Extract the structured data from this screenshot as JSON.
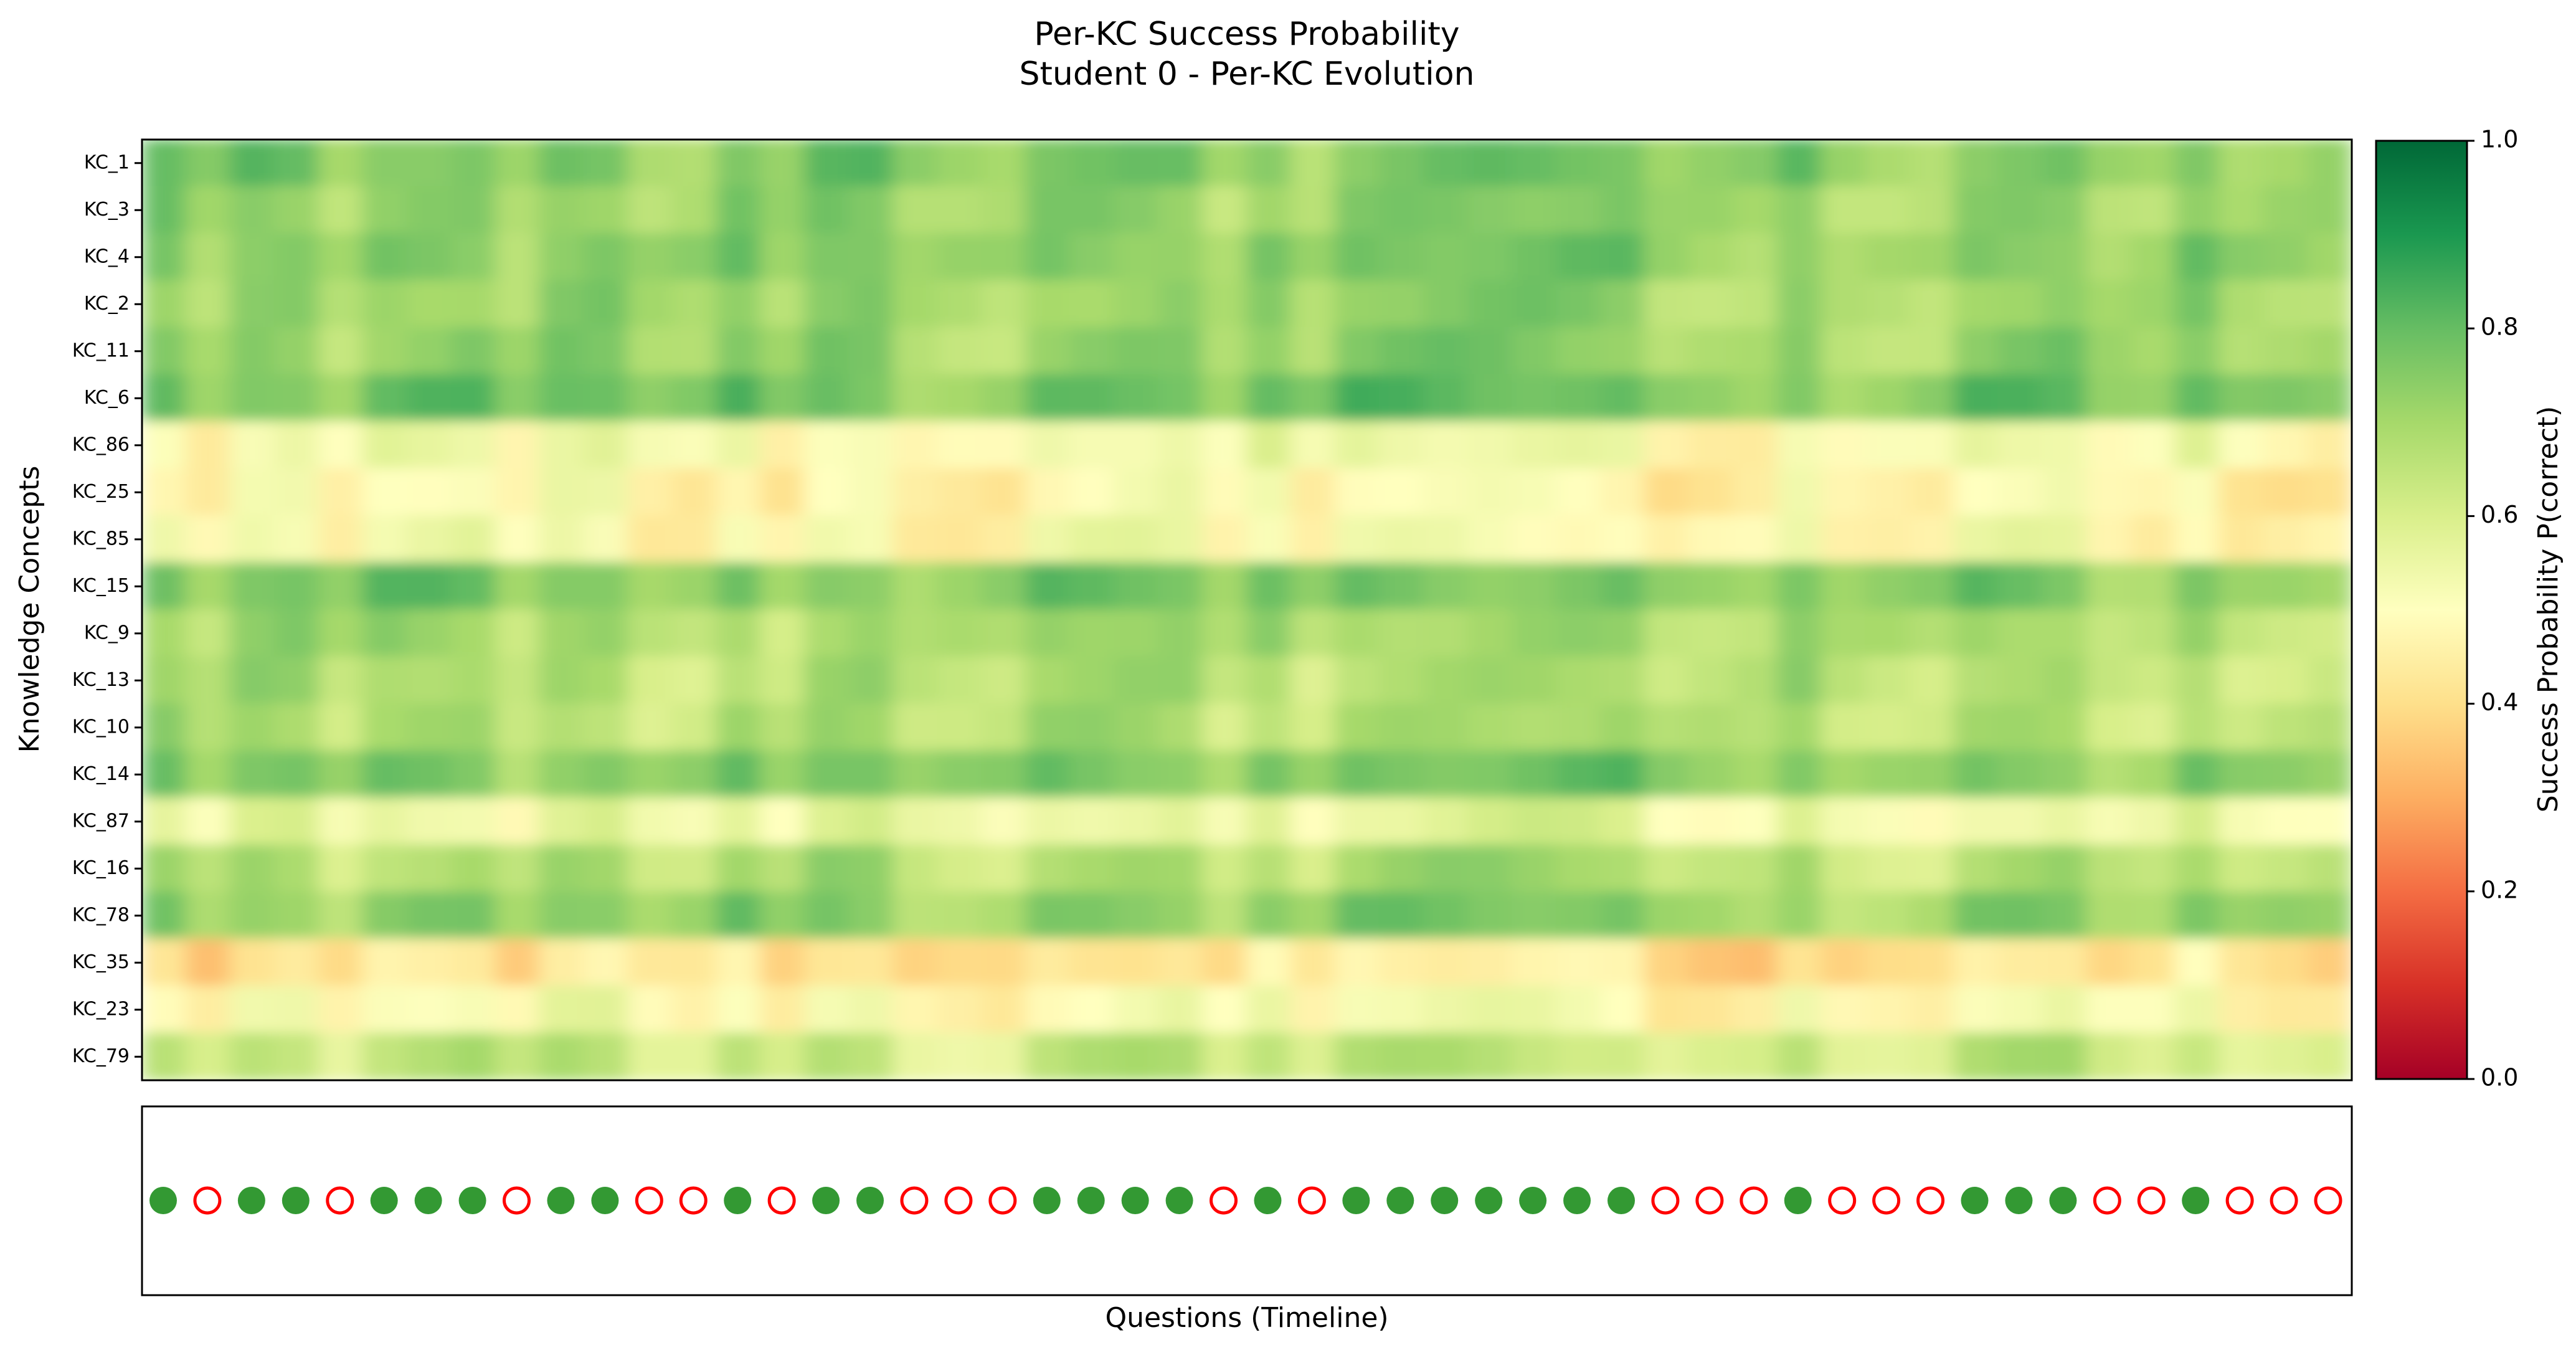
{
  "chart_data": [
    {
      "type": "heatmap",
      "title": "Per-KC Success Probability",
      "subtitle": "Student 0 - Per-KC Evolution",
      "xlabel": "",
      "ylabel": "Knowledge Concepts",
      "colormap": "RdYlGn",
      "zlim": [
        0,
        1
      ],
      "colorbar": {
        "label": "Success Probability P(correct)",
        "ticks": [
          "0.0",
          "0.2",
          "0.4",
          "0.6",
          "0.8",
          "1.0"
        ]
      },
      "rows": [
        "KC_1",
        "KC_3",
        "KC_4",
        "KC_2",
        "KC_11",
        "KC_6",
        "KC_86",
        "KC_25",
        "KC_85",
        "KC_15",
        "KC_9",
        "KC_13",
        "KC_10",
        "KC_14",
        "KC_87",
        "KC_16",
        "KC_78",
        "KC_35",
        "KC_23",
        "KC_79"
      ],
      "row_base_values": [
        0.74,
        0.71,
        0.73,
        0.7,
        0.71,
        0.76,
        0.52,
        0.48,
        0.5,
        0.74,
        0.68,
        0.66,
        0.66,
        0.74,
        0.55,
        0.66,
        0.72,
        0.42,
        0.5,
        0.62
      ],
      "num_questions": 50,
      "grid": false
    },
    {
      "type": "scatter",
      "xlabel": "Questions (Timeline)",
      "ylabel": "",
      "legend": [],
      "correctness": [
        1,
        0,
        1,
        1,
        0,
        1,
        1,
        1,
        0,
        1,
        1,
        0,
        0,
        1,
        0,
        1,
        1,
        0,
        0,
        0,
        1,
        1,
        1,
        1,
        0,
        1,
        0,
        1,
        1,
        1,
        1,
        1,
        1,
        1,
        0,
        0,
        0,
        1,
        0,
        0,
        0,
        1,
        1,
        1,
        0,
        0,
        1,
        0,
        0,
        0
      ],
      "colors": {
        "correct": "#339933",
        "incorrect": "#ff0000"
      }
    }
  ]
}
